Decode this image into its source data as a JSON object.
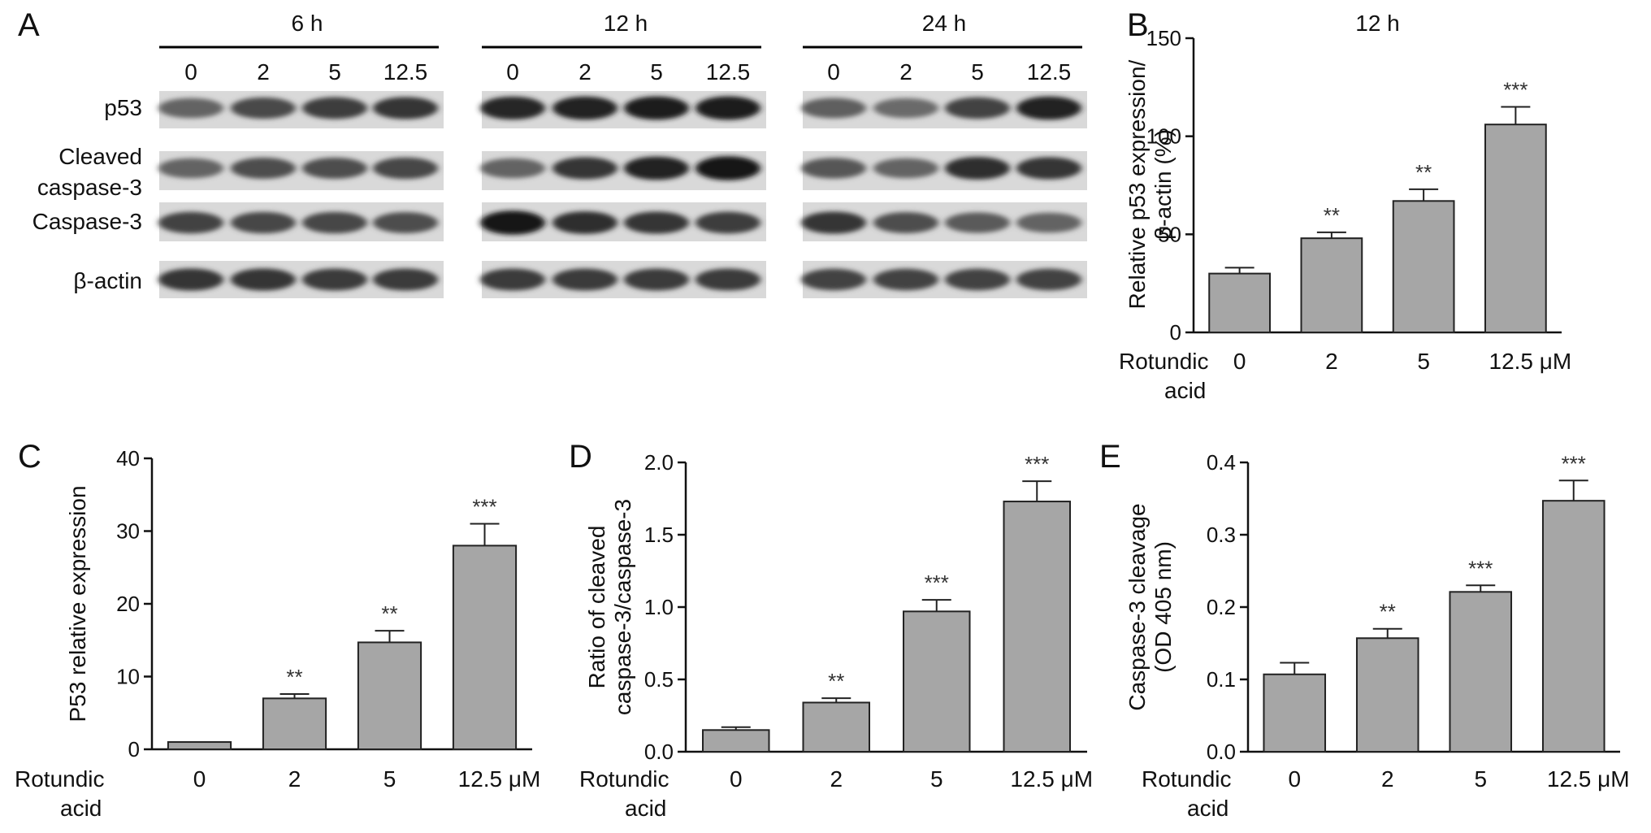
{
  "figure": {
    "panel_letters": [
      "A",
      "B",
      "C",
      "D",
      "E"
    ],
    "western_blot": {
      "timepoints": [
        "6 h",
        "12 h",
        "24 h"
      ],
      "lane_labels": [
        "0",
        "2",
        "5",
        "12.5"
      ],
      "rows": [
        {
          "label": "p53",
          "intensity": [
            [
              0.55,
              0.68,
              0.74,
              0.78
            ],
            [
              0.86,
              0.88,
              0.9,
              0.92
            ],
            [
              0.58,
              0.52,
              0.72,
              0.88
            ]
          ]
        },
        {
          "label": "Cleaved",
          "label2": "caspase-3",
          "intensity": [
            [
              0.55,
              0.66,
              0.66,
              0.7
            ],
            [
              0.55,
              0.78,
              0.88,
              0.95
            ],
            [
              0.62,
              0.55,
              0.82,
              0.78
            ]
          ]
        },
        {
          "label": "Caspase-3",
          "intensity": [
            [
              0.72,
              0.7,
              0.7,
              0.66
            ],
            [
              0.95,
              0.82,
              0.78,
              0.74
            ],
            [
              0.78,
              0.66,
              0.6,
              0.55
            ]
          ]
        },
        {
          "label": "β-actin",
          "intensity": [
            [
              0.78,
              0.78,
              0.76,
              0.76
            ],
            [
              0.76,
              0.76,
              0.76,
              0.76
            ],
            [
              0.72,
              0.72,
              0.72,
              0.72
            ]
          ]
        }
      ]
    },
    "x_group_label_1": "Rotundic",
    "x_group_label_2": "acid"
  },
  "chart_data": [
    {
      "panel": "B",
      "type": "bar",
      "title": "12 h",
      "ylabel_lines": [
        "Relative p53 expression/",
        "β-actin (%)"
      ],
      "categories": [
        "0",
        "2",
        "5",
        "12.5 μM"
      ],
      "values": [
        30,
        48,
        67,
        106
      ],
      "errors": [
        3,
        3,
        6,
        9
      ],
      "significance": [
        "",
        "**",
        "**",
        "***"
      ],
      "ylim": [
        0,
        150
      ],
      "yticks": [
        "0",
        "50",
        "100",
        "150"
      ]
    },
    {
      "panel": "C",
      "type": "bar",
      "title": "",
      "ylabel_lines": [
        "P53 relative expression"
      ],
      "categories": [
        "0",
        "2",
        "5",
        "12.5 μM"
      ],
      "values": [
        1,
        7,
        14.7,
        28
      ],
      "errors": [
        0,
        0.6,
        1.6,
        3
      ],
      "significance": [
        "",
        "**",
        "**",
        "***"
      ],
      "ylim": [
        0,
        40
      ],
      "yticks": [
        "0",
        "10",
        "20",
        "30",
        "40"
      ]
    },
    {
      "panel": "D",
      "type": "bar",
      "title": "",
      "ylabel_lines": [
        "Ratio of cleaved",
        "caspase-3/caspase-3"
      ],
      "categories": [
        "0",
        "2",
        "5",
        "12.5 μM"
      ],
      "values": [
        0.15,
        0.34,
        0.97,
        1.73
      ],
      "errors": [
        0.02,
        0.03,
        0.08,
        0.14
      ],
      "significance": [
        "",
        "**",
        "***",
        "***"
      ],
      "ylim": [
        0,
        2.0
      ],
      "yticks": [
        "0.0",
        "0.5",
        "1.0",
        "1.5",
        "2.0"
      ]
    },
    {
      "panel": "E",
      "type": "bar",
      "title": "",
      "ylabel_lines": [
        "Caspase-3 cleavage",
        "(OD 405 nm)"
      ],
      "categories": [
        "0",
        "2",
        "5",
        "12.5 μM"
      ],
      "values": [
        0.107,
        0.157,
        0.221,
        0.347
      ],
      "errors": [
        0.016,
        0.013,
        0.009,
        0.028
      ],
      "significance": [
        "",
        "**",
        "***",
        "***"
      ],
      "ylim": [
        0,
        0.4
      ],
      "yticks": [
        "0.0",
        "0.1",
        "0.2",
        "0.3",
        "0.4"
      ]
    }
  ],
  "colors": {
    "bar_fill": "#a6a6a6",
    "bar_stroke": "#222222",
    "axis": "#111111",
    "sig_text": "#333333"
  }
}
